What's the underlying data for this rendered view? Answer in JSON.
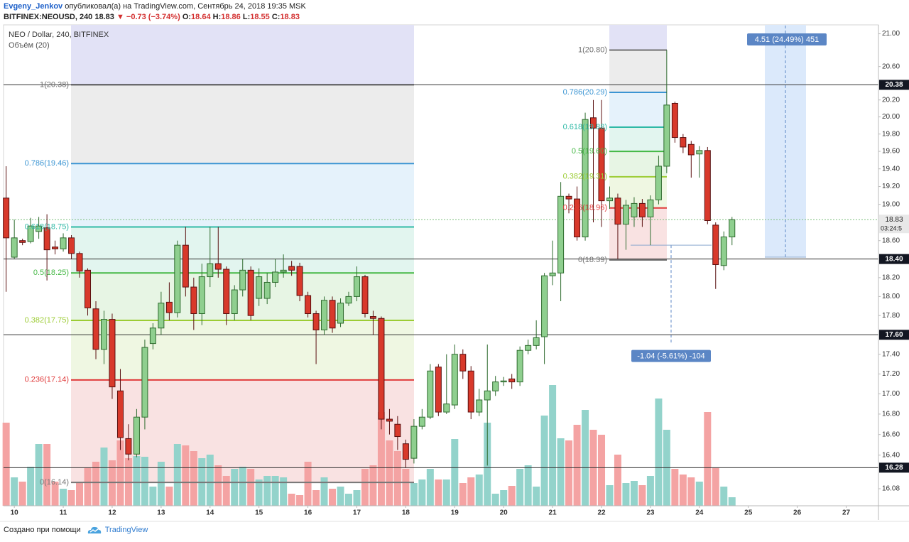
{
  "header": {
    "author": "Evgeny_Jenkov",
    "published": "опубликовал(а) на TradingView.com, Сентябрь 24, 2018 19:35 MSK",
    "symbol": "BITFINEX:NEOUSD, 240",
    "last": 18.83,
    "change": "▼ −0.73 (−3.74%)",
    "ohlc": [
      {
        "key": "O:",
        "value": 18.64
      },
      {
        "key": "H:",
        "value": 18.86
      },
      {
        "key": "L:",
        "value": 18.55
      },
      {
        "key": "C:",
        "value": 18.83
      }
    ]
  },
  "chart_data": {
    "type": "candlestick",
    "title": "NEO / Dollar, 240, BITFINEX",
    "subtitle": "Объём (20)",
    "log_scale": true,
    "grid": false,
    "up_color": "#8fcf8f",
    "down_color": "#d8392b",
    "up_volume_color": "#93d3cb",
    "down_volume_color": "#f4a3a3",
    "xlim": [
      9.78,
      27.66
    ],
    "xticks": [
      10,
      11,
      12,
      13,
      14,
      15,
      16,
      17,
      18,
      19,
      20,
      21,
      22,
      23,
      24,
      25,
      26,
      27
    ],
    "ylim": [
      15.92,
      21.11
    ],
    "yticks": [
      {
        "value": 21,
        "label": "21.00"
      },
      {
        "value": 20.6,
        "label": "20.60"
      },
      {
        "value": 20.2,
        "label": "20.20"
      },
      {
        "value": 20,
        "label": "20.00"
      },
      {
        "value": 19.8,
        "label": "19.80"
      },
      {
        "value": 19.6,
        "label": "19.60"
      },
      {
        "value": 19.4,
        "label": "19.40"
      },
      {
        "value": 19.2,
        "label": "19.20"
      },
      {
        "value": 19,
        "label": "19.00"
      },
      {
        "value": 18.6,
        "label": "18.60"
      },
      {
        "value": 18.2,
        "label": "18.20"
      },
      {
        "value": 18,
        "label": "18.00"
      },
      {
        "value": 17.8,
        "label": "17.80"
      },
      {
        "value": 17.4,
        "label": "17.40"
      },
      {
        "value": 17.2,
        "label": "17.20"
      },
      {
        "value": 17,
        "label": "17.00"
      },
      {
        "value": 16.8,
        "label": "16.80"
      },
      {
        "value": 16.6,
        "label": "16.60"
      },
      {
        "value": 16.4,
        "label": "16.40"
      },
      {
        "value": 16.08,
        "label": "16.08"
      }
    ],
    "x": [
      9.833,
      10,
      10.167,
      10.333,
      10.5,
      10.667,
      10.833,
      11,
      11.167,
      11.333,
      11.5,
      11.667,
      11.833,
      12,
      12.167,
      12.333,
      12.5,
      12.667,
      12.833,
      13,
      13.167,
      13.333,
      13.5,
      13.667,
      13.833,
      14,
      14.167,
      14.333,
      14.5,
      14.667,
      14.833,
      15,
      15.167,
      15.333,
      15.5,
      15.667,
      15.833,
      16,
      16.167,
      16.333,
      16.5,
      16.667,
      16.833,
      17,
      17.167,
      17.333,
      17.5,
      17.667,
      17.833,
      18,
      18.167,
      18.333,
      18.5,
      18.667,
      18.833,
      19,
      19.167,
      19.333,
      19.5,
      19.667,
      19.833,
      20,
      20.167,
      20.333,
      20.5,
      20.667,
      20.833,
      21,
      21.167,
      21.333,
      21.5,
      21.667,
      21.833,
      22,
      22.167,
      22.333,
      22.5,
      22.667,
      22.833,
      23,
      23.167,
      23.333,
      23.5,
      23.667,
      23.833,
      24,
      24.167,
      24.333,
      24.5,
      24.667
    ],
    "open": [
      19.07,
      18.42,
      18.6,
      18.59,
      18.7,
      18.74,
      18.53,
      18.51,
      18.63,
      18.46,
      18.28,
      17.87,
      17.45,
      17.76,
      17.03,
      16.56,
      16.41,
      16.77,
      17.51,
      17.67,
      17.94,
      17.83,
      18.55,
      18.1,
      17.82,
      18.21,
      18.35,
      18.29,
      17.82,
      18.07,
      18.28,
      17.98,
      17.98,
      18.15,
      18.26,
      18.32,
      18.32,
      18.01,
      17.82,
      17.65,
      17.96,
      17.72,
      17.93,
      18.0,
      18.21,
      17.79,
      17.77,
      16.75,
      16.7,
      16.51,
      16.37,
      16.68,
      16.77,
      17.27,
      16.82,
      16.89,
      17.4,
      17.23,
      16.82,
      16.94,
      17.03,
      17.12,
      17.15,
      17.12,
      17.44,
      17.49,
      17.58,
      18.22,
      18.25,
      19.09,
      19.06,
      18.64,
      19.99,
      19.87,
      19.04,
      19.07,
      18.78,
      18.86,
      19.01,
      18.86,
      19.05,
      19.43,
      20.16,
      19.76,
      19.68,
      19.57,
      19.61,
      18.77,
      18.33,
      18.64
    ],
    "high": [
      19.43,
      18.83,
      18.62,
      18.85,
      18.86,
      18.89,
      18.6,
      18.68,
      18.66,
      18.48,
      18.3,
      17.95,
      17.85,
      17.82,
      17.25,
      16.7,
      16.85,
      17.55,
      17.72,
      18.05,
      18.15,
      18.6,
      18.75,
      18.2,
      18.35,
      18.75,
      18.75,
      18.32,
      18.12,
      18.4,
      18.32,
      18.3,
      18.25,
      18.4,
      18.45,
      18.38,
      18.36,
      18.05,
      17.85,
      18.0,
      18.0,
      17.98,
      18.05,
      18.32,
      18.23,
      17.85,
      17.79,
      16.85,
      16.78,
      16.55,
      16.75,
      16.85,
      17.3,
      17.3,
      17.4,
      17.5,
      17.45,
      17.28,
      17.05,
      17.5,
      17.18,
      17.17,
      17.2,
      17.48,
      17.55,
      17.75,
      18.25,
      18.6,
      19.25,
      19.12,
      19.2,
      20.05,
      20.2,
      20.2,
      19.2,
      19.12,
      19.05,
      19.08,
      19.06,
      19.1,
      19.55,
      20.8,
      20.18,
      19.8,
      19.72,
      19.66,
      19.65,
      18.8,
      18.7,
      18.86
    ],
    "low": [
      18.05,
      18.4,
      18.55,
      18.57,
      18.62,
      18.17,
      18.45,
      18.48,
      18.4,
      18.2,
      17.8,
      17.35,
      17.3,
      16.95,
      16.45,
      16.35,
      16.38,
      16.65,
      17.45,
      17.6,
      17.75,
      17.78,
      18.0,
      17.65,
      17.7,
      18.1,
      18.2,
      17.7,
      17.75,
      18.0,
      17.75,
      17.9,
      17.92,
      18.1,
      18.2,
      18.22,
      17.95,
      17.78,
      17.3,
      17.6,
      17.62,
      17.68,
      17.9,
      17.95,
      17.78,
      17.6,
      16.65,
      16.6,
      16.45,
      16.28,
      16.32,
      16.65,
      16.75,
      16.78,
      16.8,
      16.85,
      17.15,
      16.75,
      16.78,
      16.3,
      16.98,
      17.08,
      17.05,
      17.08,
      17.4,
      17.45,
      17.3,
      18.12,
      17.95,
      18.9,
      18.6,
      18.6,
      18.8,
      18.75,
      18.95,
      18.4,
      18.5,
      18.75,
      18.75,
      18.55,
      19.0,
      19.35,
      19.7,
      19.58,
      19.3,
      19.3,
      18.78,
      18.08,
      18.28,
      18.55
    ],
    "close": [
      18.63,
      18.63,
      18.58,
      18.76,
      18.76,
      18.5,
      18.51,
      18.63,
      18.46,
      18.27,
      17.88,
      17.45,
      17.76,
      17.07,
      16.57,
      16.41,
      16.77,
      17.47,
      17.67,
      17.93,
      17.83,
      18.55,
      18.1,
      17.82,
      18.21,
      18.35,
      18.29,
      17.82,
      18.07,
      18.28,
      17.8,
      18.21,
      18.15,
      18.26,
      18.28,
      18.28,
      18.01,
      17.82,
      17.65,
      17.96,
      17.67,
      17.93,
      18.0,
      18.21,
      17.82,
      17.77,
      16.75,
      16.73,
      16.58,
      16.36,
      16.68,
      16.77,
      17.23,
      16.82,
      16.9,
      17.4,
      17.23,
      16.82,
      16.94,
      17.03,
      17.12,
      17.13,
      17.12,
      17.44,
      17.49,
      17.57,
      18.22,
      18.25,
      19.09,
      19.06,
      18.64,
      19.97,
      19.87,
      19.04,
      19.07,
      18.78,
      18.99,
      19.01,
      18.86,
      19.05,
      19.43,
      20.14,
      19.76,
      19.65,
      19.56,
      19.61,
      18.82,
      18.34,
      18.64,
      18.83
    ],
    "volume": [
      117,
      40,
      34,
      55,
      87,
      87,
      34,
      24,
      22,
      32,
      54,
      62,
      82,
      64,
      92,
      67,
      70,
      69,
      27,
      62,
      27,
      87,
      85,
      77,
      67,
      72,
      57,
      42,
      52,
      55,
      52,
      37,
      42,
      42,
      40,
      17,
      15,
      62,
      22,
      40,
      24,
      27,
      17,
      22,
      52,
      57,
      132,
      92,
      77,
      52,
      32,
      37,
      52,
      37,
      37,
      94,
      32,
      40,
      44,
      117,
      17,
      22,
      28,
      52,
      57,
      27,
      127,
      170,
      95,
      92,
      114,
      135,
      107,
      100,
      29,
      72,
      32,
      35,
      29,
      42,
      151,
      107,
      52,
      44,
      40,
      34,
      132,
      54,
      27,
      12
    ],
    "price_lines": [
      {
        "value": 20.38,
        "label": "20.38"
      },
      {
        "value": 18.4,
        "label": "18.40"
      },
      {
        "value": 17.6,
        "label": "17.60"
      },
      {
        "value": 16.28,
        "label": "16.28"
      }
    ],
    "last_price": {
      "value": 18.83,
      "label": "18.83",
      "countdown": "03:24:5",
      "color": "#7fbf7f"
    },
    "fibs": [
      {
        "range_fill": "#e2e2f6",
        "levels": [
          {
            "label": "1(20.38)",
            "price": 20.38,
            "color": "#6f6f6f",
            "fill": "#ececec"
          },
          {
            "label": "0.786(19.46)",
            "price": 19.46,
            "color": "#3b95d3",
            "fill": "#e5f2fb"
          },
          {
            "label": "0.618(18.75)",
            "price": 18.75,
            "color": "#2fb9a6",
            "fill": "#e2f5ef"
          },
          {
            "label": "0.5(18.25)",
            "price": 18.25,
            "color": "#45b845",
            "fill": "#e7f5e4"
          },
          {
            "label": "0.382(17.75)",
            "price": 17.75,
            "color": "#9ccc34",
            "fill": "#eff7e2"
          },
          {
            "label": "0.236(17.14)",
            "price": 17.14,
            "color": "#e03a3a",
            "fill": "#f9e2e2"
          },
          {
            "label": "0(16.14)",
            "price": 16.14,
            "color": "#777777",
            "fill": "#f9e2e2"
          }
        ]
      },
      {
        "range_fill": "#e2e2f6",
        "levels": [
          {
            "label": "1(20.80)",
            "price": 20.8,
            "color": "#6f6f6f",
            "fill": "#ececec"
          },
          {
            "label": "0.786(20.29)",
            "price": 20.29,
            "color": "#3b95d3",
            "fill": "#e5f2fb"
          },
          {
            "label": "0.618(19.88)",
            "price": 19.88,
            "color": "#2fb9a6",
            "fill": "#e2f5ef"
          },
          {
            "label": "0.5(19.60)",
            "price": 19.6,
            "color": "#45b845",
            "fill": "#e7f5e4"
          },
          {
            "label": "0.382(19.31)",
            "price": 19.31,
            "color": "#9ccc34",
            "fill": "#eff7e2"
          },
          {
            "label": "0.236(18.96)",
            "price": 18.96,
            "color": "#e03a3a",
            "fill": "#f9e2e2"
          },
          {
            "label": "0(18.39)",
            "price": 18.39,
            "color": "#777777",
            "fill": "#f9e2e2"
          }
        ]
      }
    ],
    "measures": [
      {
        "label": "4.51 (24.49%) 451",
        "from": 18.42,
        "to": 22.93,
        "color": "#5b86c5"
      },
      {
        "label": "-1.04 (-5.61%) -104",
        "from": 18.55,
        "to": 17.51,
        "color": "#5b86c5"
      }
    ]
  },
  "footer": {
    "text": "Создано при помощи",
    "brand": "TradingView"
  }
}
